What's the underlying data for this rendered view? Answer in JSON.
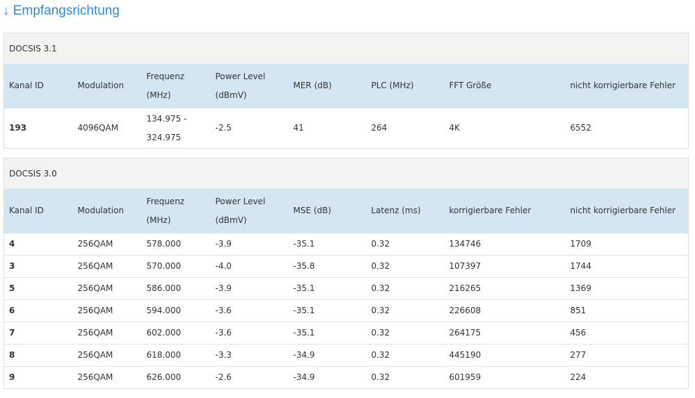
{
  "title": "↓ Empfangsrichtung",
  "tables": [
    {
      "section": "DOCSIS 3.1",
      "columns": [
        "Kanal ID",
        "Modulation",
        "Frequenz (MHz)",
        "Power Level (dBmV)",
        "MER (dB)",
        "PLC (MHz)",
        "FFT Größe",
        "nicht korrigierbare Fehler"
      ],
      "rows": [
        [
          "193",
          "4096QAM",
          "134.975 - 324.975",
          "-2.5",
          "41",
          "264",
          "4K",
          "6552"
        ]
      ]
    },
    {
      "section": "DOCSIS 3.0",
      "columns": [
        "Kanal ID",
        "Modulation",
        "Frequenz (MHz)",
        "Power Level (dBmV)",
        "MSE (dB)",
        "Latenz (ms)",
        "korrigierbare Fehler",
        "nicht korrigierbare Fehler"
      ],
      "rows": [
        [
          "4",
          "256QAM",
          "578.000",
          "-3.9",
          "-35.1",
          "0.32",
          "134746",
          "1709"
        ],
        [
          "3",
          "256QAM",
          "570.000",
          "-4.0",
          "-35.8",
          "0.32",
          "107397",
          "1744"
        ],
        [
          "5",
          "256QAM",
          "586.000",
          "-3.9",
          "-35.1",
          "0.32",
          "216265",
          "1369"
        ],
        [
          "6",
          "256QAM",
          "594.000",
          "-3.6",
          "-35.1",
          "0.32",
          "226608",
          "851"
        ],
        [
          "7",
          "256QAM",
          "602.000",
          "-3.6",
          "-35.1",
          "0.32",
          "264175",
          "456"
        ],
        [
          "8",
          "256QAM",
          "618.000",
          "-3.3",
          "-34.9",
          "0.32",
          "445190",
          "277"
        ],
        [
          "9",
          "256QAM",
          "626.000",
          "-2.6",
          "-34.9",
          "0.32",
          "601959",
          "224"
        ]
      ]
    }
  ]
}
